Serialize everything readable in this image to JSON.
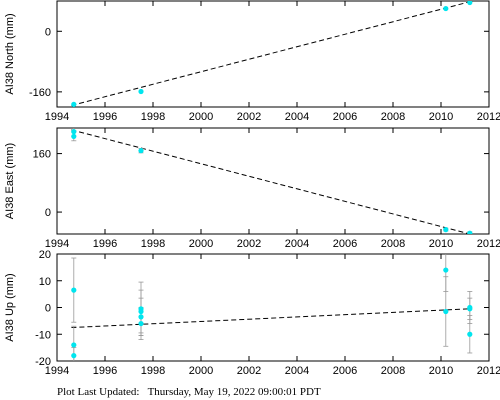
{
  "chart_data": [
    {
      "type": "scatter",
      "title": "",
      "ylabel": "AI38 North (mm)",
      "xlabel": "",
      "xlim": [
        1994,
        2012
      ],
      "ylim": [
        -200,
        80
      ],
      "xticks": [
        1994,
        1996,
        1998,
        2000,
        2002,
        2004,
        2006,
        2008,
        2010,
        2012
      ],
      "xtick_labels": [
        "1994",
        "1996",
        "1998",
        "2000",
        "2002",
        "2004",
        "2006",
        "2008",
        "2010",
        "2012"
      ],
      "yticks": [
        -160,
        0
      ],
      "ytick_labels": [
        "-160",
        "0"
      ],
      "grid": false,
      "points": [
        {
          "x": 1994.7,
          "y": -193
        },
        {
          "x": 1997.5,
          "y": -159
        },
        {
          "x": 2010.2,
          "y": 60
        },
        {
          "x": 2011.2,
          "y": 76
        }
      ],
      "trend_line": {
        "x": [
          1994.6,
          2011.2
        ],
        "y": [
          -196,
          78
        ]
      },
      "point_color": "#00e5ee",
      "trend_color": "#000000"
    },
    {
      "type": "scatter",
      "title": "",
      "ylabel": "AI38 East (mm)",
      "xlabel": "",
      "xlim": [
        1994,
        2012
      ],
      "ylim": [
        -60,
        230
      ],
      "xticks": [
        1994,
        1996,
        1998,
        2000,
        2002,
        2004,
        2006,
        2008,
        2010,
        2012
      ],
      "xtick_labels": [
        "1994",
        "1996",
        "1998",
        "2000",
        "2002",
        "2004",
        "2006",
        "2008",
        "2010",
        "2012"
      ],
      "yticks": [
        0,
        160
      ],
      "ytick_labels": [
        "0",
        "160"
      ],
      "grid": false,
      "points": [
        {
          "x": 1994.7,
          "y": 220,
          "err": 12
        },
        {
          "x": 1994.7,
          "y": 207,
          "err": 12
        },
        {
          "x": 1997.5,
          "y": 168,
          "err": 6
        },
        {
          "x": 2010.2,
          "y": -48,
          "err": 4
        },
        {
          "x": 2011.2,
          "y": -58,
          "err": 4
        }
      ],
      "trend_line": {
        "x": [
          1994.6,
          2011.2
        ],
        "y": [
          225,
          -60
        ]
      },
      "point_color": "#00e5ee",
      "trend_color": "#000000"
    },
    {
      "type": "scatter",
      "title": "",
      "ylabel": "AI38 Up (mm)",
      "xlabel": "",
      "xlim": [
        1994,
        2012
      ],
      "ylim": [
        -20,
        20
      ],
      "xticks": [
        1994,
        1996,
        1998,
        2000,
        2002,
        2004,
        2006,
        2008,
        2010,
        2012
      ],
      "xtick_labels": [
        "1994",
        "1996",
        "1998",
        "2000",
        "2002",
        "2004",
        "2006",
        "2008",
        "2010",
        "2012"
      ],
      "yticks": [
        -20,
        -10,
        0,
        10,
        20
      ],
      "ytick_labels": [
        "-20",
        "-10",
        "0",
        "10",
        "20"
      ],
      "grid": false,
      "points": [
        {
          "x": 1994.7,
          "y": 6.5,
          "err": 12
        },
        {
          "x": 1994.7,
          "y": -14,
          "err": 7
        },
        {
          "x": 1994.7,
          "y": -18,
          "err": 3
        },
        {
          "x": 1997.5,
          "y": -0.5,
          "err": 10
        },
        {
          "x": 1997.5,
          "y": -1.5,
          "err": 8
        },
        {
          "x": 1997.5,
          "y": -3.5,
          "err": 7
        },
        {
          "x": 1997.5,
          "y": -6,
          "err": 6
        },
        {
          "x": 2010.2,
          "y": 14,
          "err": 8
        },
        {
          "x": 2010.2,
          "y": -1.5,
          "err": 13
        },
        {
          "x": 2011.2,
          "y": 0,
          "err": 6
        },
        {
          "x": 2011.2,
          "y": -0.5,
          "err": 4
        },
        {
          "x": 2011.2,
          "y": -10,
          "err": 7
        }
      ],
      "trend_line": {
        "x": [
          1994.6,
          2011.2
        ],
        "y": [
          -7.5,
          -0.5
        ]
      },
      "point_color": "#00e5ee",
      "errorbar_color": "#999999",
      "trend_color": "#000000"
    }
  ],
  "footer": {
    "label": "Plot Last Updated:",
    "timestamp": "Thursday, May 19, 2022 09:00:01 PDT"
  }
}
